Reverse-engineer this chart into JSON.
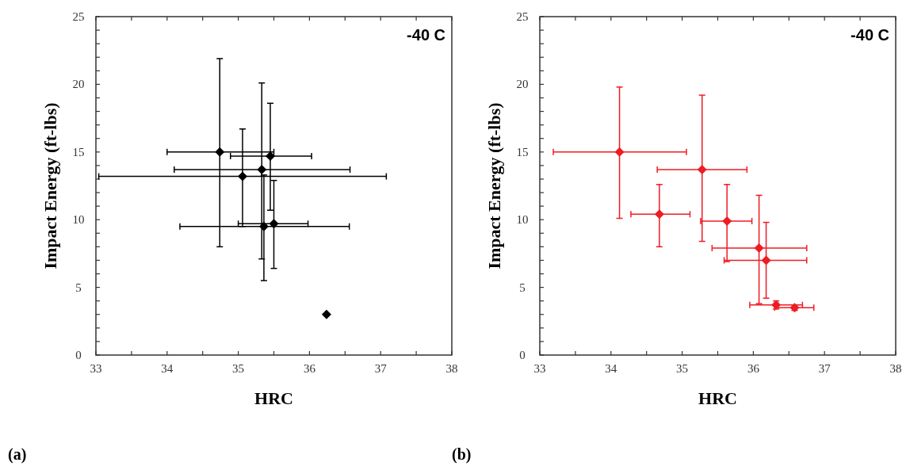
{
  "chart_data": [
    {
      "type": "scatter",
      "title": "(a)",
      "xlabel": "HRC",
      "ylabel": "Impact Energy (ft-lbs)",
      "annotations": [
        "-40 C"
      ],
      "marker": "diamond",
      "color": "#000000",
      "x": [
        34.74,
        35.45,
        35.33,
        35.06,
        35.5,
        35.36,
        36.24
      ],
      "values": [
        15.0,
        14.7,
        13.7,
        13.2,
        9.7,
        9.5,
        3.0
      ],
      "errors": [
        [
          8.0,
          21.9
        ],
        [
          10.7,
          18.6
        ],
        [
          7.1,
          20.1
        ],
        [
          9.5,
          16.7
        ],
        [
          6.4,
          12.9
        ],
        [
          5.5,
          13.3
        ],
        null
      ],
      "xerrors": [
        [
          34.0,
          35.5
        ],
        [
          34.89,
          36.03
        ],
        [
          34.1,
          36.57
        ],
        [
          33.04,
          37.08
        ],
        [
          35.0,
          35.98
        ],
        [
          34.18,
          36.56
        ],
        null
      ],
      "xlim": [
        33,
        38
      ],
      "ylim": [
        0,
        25
      ],
      "xticks": [
        33,
        {
          "value": 33.5,
          "label": null
        },
        34,
        {
          "value": 34.5,
          "label": null
        },
        35,
        {
          "value": 35.5,
          "label": null
        },
        36,
        {
          "value": 36.5,
          "label": null
        },
        37,
        {
          "value": 37.5,
          "label": null
        },
        38
      ],
      "yticks": [
        0,
        {
          "value": 1,
          "label": null
        },
        {
          "value": 2,
          "label": null
        },
        {
          "value": 3,
          "label": null
        },
        {
          "value": 4,
          "label": null
        },
        5,
        {
          "value": 6,
          "label": null
        },
        {
          "value": 7,
          "label": null
        },
        {
          "value": 8,
          "label": null
        },
        {
          "value": 9,
          "label": null
        },
        10,
        {
          "value": 11,
          "label": null
        },
        {
          "value": 12,
          "label": null
        },
        {
          "value": 13,
          "label": null
        },
        {
          "value": 14,
          "label": null
        },
        15,
        {
          "value": 16,
          "label": null
        },
        {
          "value": 17,
          "label": null
        },
        {
          "value": 18,
          "label": null
        },
        {
          "value": 19,
          "label": null
        },
        20,
        {
          "value": 21,
          "label": null
        },
        {
          "value": 22,
          "label": null
        },
        {
          "value": 23,
          "label": null
        },
        {
          "value": 24,
          "label": null
        },
        25
      ]
    },
    {
      "type": "scatter",
      "title": "(b)",
      "xlabel": "HRC",
      "ylabel": "Impact Energy (ft-lbs)",
      "annotations": [
        "-40 C"
      ],
      "marker": "diamond",
      "color": "#ee1c24",
      "x": [
        34.12,
        34.68,
        35.28,
        35.63,
        36.08,
        36.18,
        36.32,
        36.58
      ],
      "values": [
        15.0,
        10.4,
        13.7,
        9.9,
        7.9,
        7.0,
        3.7,
        3.5
      ],
      "errors": [
        [
          10.1,
          19.8
        ],
        [
          8.0,
          12.6
        ],
        [
          8.4,
          19.2
        ],
        [
          6.9,
          12.6
        ],
        [
          3.8,
          11.8
        ],
        [
          4.2,
          9.8
        ],
        [
          3.4,
          4.0
        ],
        [
          3.3,
          3.7
        ]
      ],
      "xerrors": [
        [
          33.19,
          35.06
        ],
        [
          34.28,
          35.11
        ],
        [
          34.65,
          35.91
        ],
        [
          35.26,
          35.98
        ],
        [
          35.42,
          36.75
        ],
        [
          35.59,
          36.75
        ],
        [
          35.95,
          36.69
        ],
        [
          36.3,
          36.85
        ]
      ],
      "xlim": [
        33,
        38
      ],
      "ylim": [
        0,
        25
      ],
      "xticks": [
        33,
        {
          "value": 33.5,
          "label": null
        },
        34,
        {
          "value": 34.5,
          "label": null
        },
        35,
        {
          "value": 35.5,
          "label": null
        },
        36,
        {
          "value": 36.5,
          "label": null
        },
        37,
        {
          "value": 37.5,
          "label": null
        },
        38
      ],
      "yticks": [
        0,
        {
          "value": 1,
          "label": null
        },
        {
          "value": 2,
          "label": null
        },
        {
          "value": 3,
          "label": null
        },
        {
          "value": 4,
          "label": null
        },
        5,
        {
          "value": 6,
          "label": null
        },
        {
          "value": 7,
          "label": null
        },
        {
          "value": 8,
          "label": null
        },
        {
          "value": 9,
          "label": null
        },
        10,
        {
          "value": 11,
          "label": null
        },
        {
          "value": 12,
          "label": null
        },
        {
          "value": 13,
          "label": null
        },
        {
          "value": 14,
          "label": null
        },
        15,
        {
          "value": 16,
          "label": null
        },
        {
          "value": 17,
          "label": null
        },
        {
          "value": 18,
          "label": null
        },
        {
          "value": 19,
          "label": null
        },
        20,
        {
          "value": 21,
          "label": null
        },
        {
          "value": 22,
          "label": null
        },
        {
          "value": 23,
          "label": null
        },
        {
          "value": 24,
          "label": null
        },
        25
      ]
    }
  ]
}
